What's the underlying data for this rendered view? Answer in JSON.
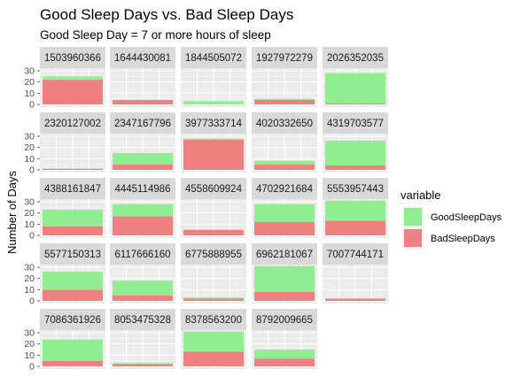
{
  "chart_data": {
    "type": "bar",
    "title": "Good Sleep Days vs. Bad Sleep Days",
    "subtitle": "Good Sleep Day = 7 or more hours of sleep",
    "ylabel": "Number of Days",
    "xlabel": "",
    "ylim": [
      0,
      30
    ],
    "y_ticks": [
      0,
      10,
      20,
      30
    ],
    "stacked": true,
    "grid": true,
    "legend": {
      "title": "variable",
      "placement": "right",
      "entries": [
        {
          "label": "GoodSleepDays",
          "color": "#90EE90"
        },
        {
          "label": "BadSleepDays",
          "color": "#F08080"
        }
      ]
    },
    "panels": [
      {
        "id": "1503960366",
        "good": 3,
        "bad": 22
      },
      {
        "id": "1644430081",
        "good": 0,
        "bad": 4
      },
      {
        "id": "1844505072",
        "good": 3,
        "bad": 0
      },
      {
        "id": "1927972279",
        "good": 1,
        "bad": 4
      },
      {
        "id": "2026352035",
        "good": 27,
        "bad": 1
      },
      {
        "id": "2320127002",
        "good": 0,
        "bad": 1
      },
      {
        "id": "2347167796",
        "good": 10,
        "bad": 5
      },
      {
        "id": "3977333714",
        "good": 1,
        "bad": 27
      },
      {
        "id": "4020332650",
        "good": 3,
        "bad": 5
      },
      {
        "id": "4319703577",
        "good": 22,
        "bad": 4
      },
      {
        "id": "4388161847",
        "good": 15,
        "bad": 8
      },
      {
        "id": "4445114986",
        "good": 11,
        "bad": 17
      },
      {
        "id": "4558609924",
        "good": 0,
        "bad": 5
      },
      {
        "id": "4702921684",
        "good": 16,
        "bad": 12
      },
      {
        "id": "5553957443",
        "good": 18,
        "bad": 13
      },
      {
        "id": "5577150313",
        "good": 16,
        "bad": 10
      },
      {
        "id": "6117666160",
        "good": 13,
        "bad": 5
      },
      {
        "id": "6775888955",
        "good": 1,
        "bad": 2
      },
      {
        "id": "6962181067",
        "good": 23,
        "bad": 8
      },
      {
        "id": "7007744171",
        "good": 0,
        "bad": 2
      },
      {
        "id": "7086361926",
        "good": 19,
        "bad": 5
      },
      {
        "id": "8053475328",
        "good": 1,
        "bad": 2
      },
      {
        "id": "8378563200",
        "good": 18,
        "bad": 13
      },
      {
        "id": "8792009665",
        "good": 8,
        "bad": 7
      }
    ]
  }
}
